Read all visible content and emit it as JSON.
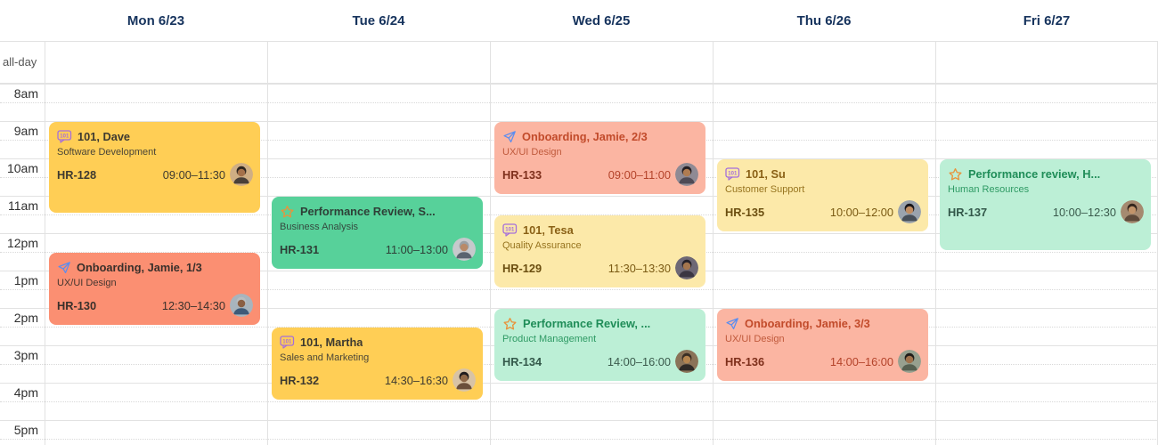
{
  "calendar": {
    "all_day_label": "all-day",
    "days": [
      {
        "label": "Mon 6/23"
      },
      {
        "label": "Tue 6/24"
      },
      {
        "label": "Wed 6/25"
      },
      {
        "label": "Thu 6/26"
      },
      {
        "label": "Fri 6/27"
      }
    ],
    "time_labels": [
      "8am",
      "9am",
      "10am",
      "11am",
      "12pm",
      "1pm",
      "2pm",
      "3pm",
      "4pm",
      "5pm"
    ],
    "colors": {
      "header_text": "#16335D",
      "time_text": "#2f2f2f",
      "allday_text": "#555555",
      "grid_line": "#e2e2e2",
      "grid_dotted": "#d9d9d9"
    },
    "icon_colors": {
      "one-on-one": "#A46EDB",
      "paper-plane": "#5B8DEF",
      "star": "#E8933B"
    },
    "variants": {
      "yellow-strong": {
        "bg": "#FFCE55",
        "title": "#3E3A30",
        "dept": "#4A4537",
        "code": "#3E3A30",
        "time": "#3E3A30"
      },
      "salmon-strong": {
        "bg": "#FB8F72",
        "title": "#39302B",
        "dept": "#45362F",
        "code": "#39302B",
        "time": "#39302B"
      },
      "green-strong": {
        "bg": "#57D19A",
        "title": "#2E3F37",
        "dept": "#35493F",
        "code": "#2E3F37",
        "time": "#2E3F37"
      },
      "yellow-light": {
        "bg": "#FCE9A9",
        "title": "#8A6116",
        "dept": "#97741F",
        "code": "#6B4E10",
        "time": "#7A5A13"
      },
      "salmon-light": {
        "bg": "#FBB5A2",
        "title": "#C24B2B",
        "dept": "#C05A3C",
        "code": "#7E2F1B",
        "time": "#B4432A"
      },
      "green-light": {
        "bg": "#BCEFD6",
        "title": "#1F8D58",
        "dept": "#2E9A64",
        "code": "#33584A",
        "time": "#3A5A4C"
      }
    },
    "events": [
      {
        "day": 0,
        "icon": "one-on-one",
        "title": "101, Dave",
        "department": "Software Development",
        "code": "HR-128",
        "time": "09:00–11:30",
        "start": 9,
        "end": 11.5,
        "variant": "yellow-strong",
        "avatar": {
          "bg": "#cfae84",
          "skin": "#a5714a",
          "hair": "#2e2620",
          "shirt": "#4a4038"
        }
      },
      {
        "day": 0,
        "icon": "paper-plane",
        "title": "Onboarding, Jamie, 1/3",
        "department": "UX/UI Design",
        "code": "HR-130",
        "time": "12:30–14:30",
        "start": 12.5,
        "end": 14.5,
        "variant": "salmon-strong",
        "avatar": {
          "bg": "#a8b4bd",
          "skin": "#8a5f43",
          "hair": "#b9bdc0",
          "shirt": "#3f5a78"
        }
      },
      {
        "day": 1,
        "icon": "star",
        "title": "Performance Review, S...",
        "department": "Business Analysis",
        "code": "HR-131",
        "time": "11:00–13:00",
        "start": 11,
        "end": 13,
        "variant": "green-strong",
        "avatar": {
          "bg": "#c6c9cc",
          "skin": "#b98a68",
          "hair": "#9aa0a4",
          "shirt": "#5a6470"
        }
      },
      {
        "day": 1,
        "icon": "one-on-one",
        "title": "101, Martha",
        "department": "Sales and Marketing",
        "code": "HR-132",
        "time": "14:30–16:30",
        "start": 14.5,
        "end": 16.5,
        "variant": "yellow-strong",
        "avatar": {
          "bg": "#d8c3a5",
          "skin": "#8f6848",
          "hair": "#1f1b1e",
          "shirt": "#6b4f3a"
        }
      },
      {
        "day": 2,
        "icon": "paper-plane",
        "title": "Onboarding, Jamie, 2/3",
        "department": "UX/UI Design",
        "code": "HR-133",
        "time": "09:00–11:00",
        "start": 9,
        "end": 11,
        "variant": "salmon-light",
        "avatar": {
          "bg": "#8f8a94",
          "skin": "#b07c52",
          "hair": "#241f24",
          "shirt": "#4f4a55"
        }
      },
      {
        "day": 2,
        "icon": "one-on-one",
        "title": "101, Tesa",
        "department": "Quality Assurance",
        "code": "HR-129",
        "time": "11:30–13:30",
        "start": 11.5,
        "end": 13.5,
        "variant": "yellow-light",
        "avatar": {
          "bg": "#6e6875",
          "skin": "#a5764e",
          "hair": "#26222a",
          "shirt": "#3b3642"
        }
      },
      {
        "day": 2,
        "icon": "star",
        "title": "Performance Review, ...",
        "department": "Product Management",
        "code": "HR-134",
        "time": "14:00–16:00",
        "start": 14,
        "end": 16,
        "variant": "green-light",
        "avatar": {
          "bg": "#8a7358",
          "skin": "#b5854f",
          "hair": "#3a2e24",
          "shirt": "#2f2a26"
        }
      },
      {
        "day": 3,
        "icon": "one-on-one",
        "title": "101, Su",
        "department": "Customer Support",
        "code": "HR-135",
        "time": "10:00–12:00",
        "start": 10,
        "end": 12,
        "variant": "yellow-light",
        "avatar": {
          "bg": "#9aa3ad",
          "skin": "#c08d62",
          "hair": "#17161a",
          "shirt": "#474f58"
        }
      },
      {
        "day": 3,
        "icon": "paper-plane",
        "title": "Onboarding, Jamie, 3/3",
        "department": "UX/UI Design",
        "code": "HR-136",
        "time": "14:00–16:00",
        "start": 14,
        "end": 16,
        "variant": "salmon-light",
        "avatar": {
          "bg": "#97a08f",
          "skin": "#a0724c",
          "hair": "#201d1a",
          "shirt": "#566051"
        }
      },
      {
        "day": 4,
        "icon": "star",
        "title": "Performance review, H...",
        "department": "Human Resources",
        "code": "HR-137",
        "time": "10:00–12:30",
        "start": 10,
        "end": 12.5,
        "variant": "green-light",
        "avatar": {
          "bg": "#a58a70",
          "skin": "#c2946a",
          "hair": "#33261d",
          "shirt": "#5f4a3a"
        }
      }
    ]
  }
}
